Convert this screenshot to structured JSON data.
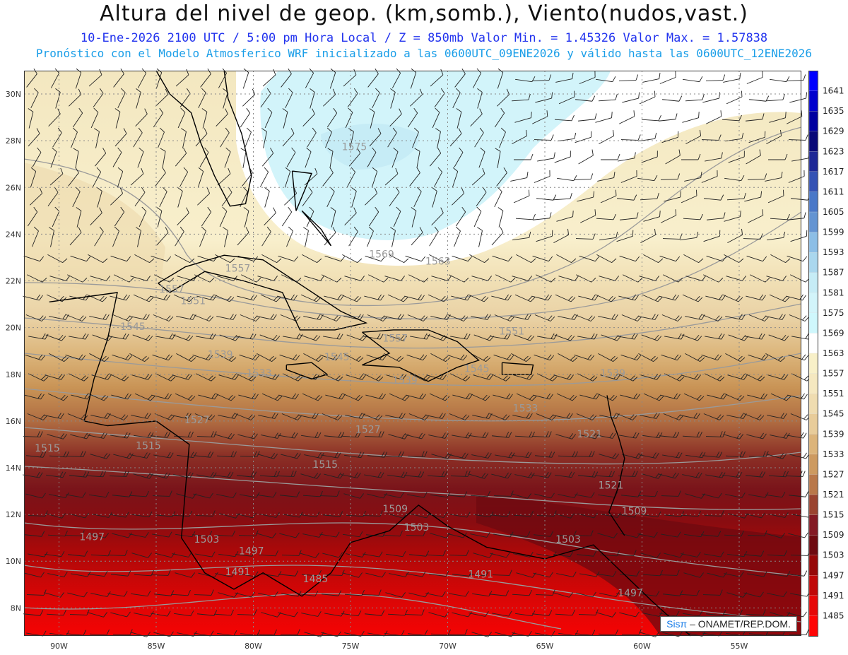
{
  "header": {
    "title": "Altura del nivel de geop. (km,somb.), Viento(nudos,vast.)",
    "subtitle1": "10-Ene-2026  2100 UTC / 5:00 pm Hora Local / Z = 850mb     Valor Min. = 1.45326  Valor Max. = 1.57838",
    "subtitle2": "Pronóstico con el Modelo Atmosferico WRF inicializado a las 0600UTC_09ENE2026 y válido hasta las  0600UTC_12ENE2026"
  },
  "map": {
    "lon_range": [
      -91.8,
      -51.8
    ],
    "lat_range": [
      6.8,
      31.0
    ],
    "lon_ticks": [
      "90W",
      "85W",
      "80W",
      "75W",
      "70W",
      "65W",
      "60W",
      "55W"
    ],
    "lat_ticks": [
      "8N",
      "10N",
      "12N",
      "14N",
      "16N",
      "18N",
      "20N",
      "22N",
      "24N",
      "26N",
      "28N",
      "30N"
    ],
    "contour_labels": [
      "1575",
      "1569",
      "1563",
      "1557",
      "1557",
      "1557",
      "1551",
      "1551",
      "1545",
      "1545",
      "1545",
      "1539",
      "1539",
      "1539",
      "1533",
      "1533",
      "1527",
      "1527",
      "1521",
      "1521",
      "1515",
      "1515",
      "1515",
      "1509",
      "1509",
      "1503",
      "1503",
      "1503",
      "1497",
      "1497",
      "1497",
      "1491",
      "1491",
      "1485"
    ],
    "credit_brand": "Sisπ",
    "credit_text": " – ONAMET/REP.DOM."
  },
  "legend": {
    "levels": [
      "1641",
      "1635",
      "1629",
      "1623",
      "1617",
      "1611",
      "1605",
      "1599",
      "1593",
      "1587",
      "1581",
      "1575",
      "1569",
      "1563",
      "1557",
      "1551",
      "1545",
      "1539",
      "1533",
      "1527",
      "1521",
      "1515",
      "1509",
      "1503",
      "1497",
      "1491",
      "1485"
    ],
    "colors": [
      "#0000ff",
      "#0000cd",
      "#0000a0",
      "#0a0a78",
      "#1e2896",
      "#3452b4",
      "#4a78c8",
      "#6494d2",
      "#8cbee6",
      "#aad7ee",
      "#c6ecf6",
      "#d2f4fa",
      "#cff7fc",
      "#ffffff",
      "#f8f0c8",
      "#f5e8c0",
      "#efdcb0",
      "#e8cc9a",
      "#dcb47a",
      "#cd9a60",
      "#b9784a",
      "#9a4430",
      "#831a24",
      "#6e0a10",
      "#960808",
      "#c00808",
      "#e60808",
      "#ff0505"
    ]
  },
  "colors": {
    "title": "#111111",
    "subtitle1": "#2233ee",
    "subtitle2": "#1a9ee8"
  }
}
